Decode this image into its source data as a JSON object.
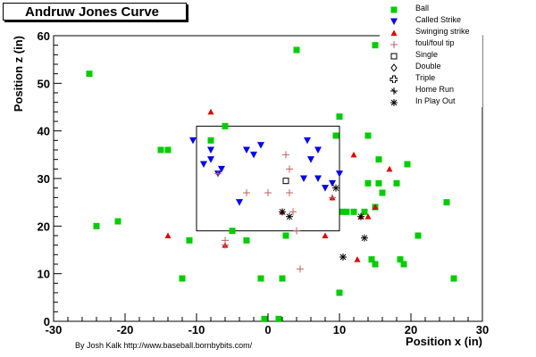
{
  "credit": "By Josh Kalk http://www.baseball.bornbybits.com/",
  "chart_data": {
    "type": "scatter",
    "title": "Andruw Jones Curve",
    "xlabel": "Position x (in)",
    "ylabel": "Position z (in)",
    "xlim": [
      -30,
      30
    ],
    "ylim": [
      0,
      60
    ],
    "xticks": [
      -30,
      -20,
      -10,
      0,
      10,
      20,
      30
    ],
    "yticks": [
      0,
      10,
      20,
      30,
      40,
      50,
      60
    ],
    "strike_zone": {
      "x": [
        -10,
        10
      ],
      "z": [
        19,
        41
      ]
    },
    "legend_position": "top-right",
    "series": [
      {
        "name": "Ball",
        "marker": "square",
        "color": "#00cc00",
        "points": [
          [
            -25,
            52
          ],
          [
            -24,
            20
          ],
          [
            -21,
            21
          ],
          [
            -15,
            36
          ],
          [
            -14,
            36
          ],
          [
            -12,
            9
          ],
          [
            -11,
            17
          ],
          [
            -8,
            38
          ],
          [
            -6,
            41
          ],
          [
            -5,
            19
          ],
          [
            -3,
            17
          ],
          [
            -1,
            9
          ],
          [
            -0.5,
            0.5
          ],
          [
            1.5,
            0.5
          ],
          [
            2,
            9
          ],
          [
            2.5,
            18
          ],
          [
            4,
            57
          ],
          [
            9.5,
            39
          ],
          [
            10,
            6
          ],
          [
            10,
            43
          ],
          [
            10.5,
            23
          ],
          [
            11,
            23
          ],
          [
            12,
            23
          ],
          [
            13.5,
            23
          ],
          [
            14,
            29
          ],
          [
            14,
            39
          ],
          [
            14.5,
            13
          ],
          [
            15,
            12
          ],
          [
            15,
            24
          ],
          [
            15,
            58
          ],
          [
            15.5,
            34
          ],
          [
            15.5,
            29
          ],
          [
            16,
            27
          ],
          [
            18,
            29
          ],
          [
            18.5,
            13
          ],
          [
            19,
            12
          ],
          [
            19.5,
            33
          ],
          [
            21,
            18
          ],
          [
            25,
            25
          ],
          [
            26,
            9
          ]
        ]
      },
      {
        "name": "Called Strike",
        "marker": "triangle-down",
        "color": "#0000ee",
        "points": [
          [
            -10.5,
            38
          ],
          [
            -9,
            33
          ],
          [
            -8,
            36
          ],
          [
            -8,
            34
          ],
          [
            -7,
            31
          ],
          [
            -6.5,
            32
          ],
          [
            -4,
            25
          ],
          [
            -3,
            36
          ],
          [
            -2,
            35
          ],
          [
            -1,
            37
          ],
          [
            5,
            30
          ],
          [
            5.5,
            38
          ],
          [
            6,
            34
          ],
          [
            7,
            36
          ],
          [
            7,
            30
          ],
          [
            8,
            28
          ],
          [
            9,
            29
          ],
          [
            10,
            31
          ]
        ]
      },
      {
        "name": "Swinging strike",
        "marker": "triangle-up",
        "color": "#dd0000",
        "points": [
          [
            -14,
            18
          ],
          [
            -8,
            44
          ],
          [
            -6,
            16
          ],
          [
            2,
            23
          ],
          [
            8,
            18
          ],
          [
            9,
            26
          ],
          [
            12,
            35
          ],
          [
            12.5,
            13
          ],
          [
            13,
            22
          ],
          [
            14,
            22
          ],
          [
            15,
            24
          ],
          [
            17,
            32
          ]
        ]
      },
      {
        "name": "foul/foul tip",
        "marker": "plus",
        "color": "#c06060",
        "points": [
          [
            -6,
            16
          ],
          [
            -6,
            17
          ],
          [
            -7,
            31
          ],
          [
            -3,
            27
          ],
          [
            0,
            27
          ],
          [
            2.5,
            35
          ],
          [
            3,
            32
          ],
          [
            3,
            27
          ],
          [
            3.5,
            23
          ],
          [
            4,
            19
          ],
          [
            4.5,
            11
          ],
          [
            9,
            26
          ]
        ]
      },
      {
        "name": "Single",
        "marker": "open-square",
        "color": "#000000",
        "points": [
          [
            2.5,
            29.5
          ]
        ]
      },
      {
        "name": "Double",
        "marker": "diamond",
        "color": "#000000",
        "points": []
      },
      {
        "name": "Triple",
        "marker": "open-cross",
        "color": "#000000",
        "points": []
      },
      {
        "name": "Home Run",
        "marker": "star-4",
        "color": "#000000",
        "points": []
      },
      {
        "name": "In Play Out",
        "marker": "asterisk",
        "color": "#000000",
        "points": [
          [
            2,
            23
          ],
          [
            3,
            22
          ],
          [
            9.5,
            28
          ],
          [
            13,
            22
          ],
          [
            13.5,
            17.5
          ],
          [
            10.5,
            13.5
          ]
        ]
      }
    ]
  }
}
